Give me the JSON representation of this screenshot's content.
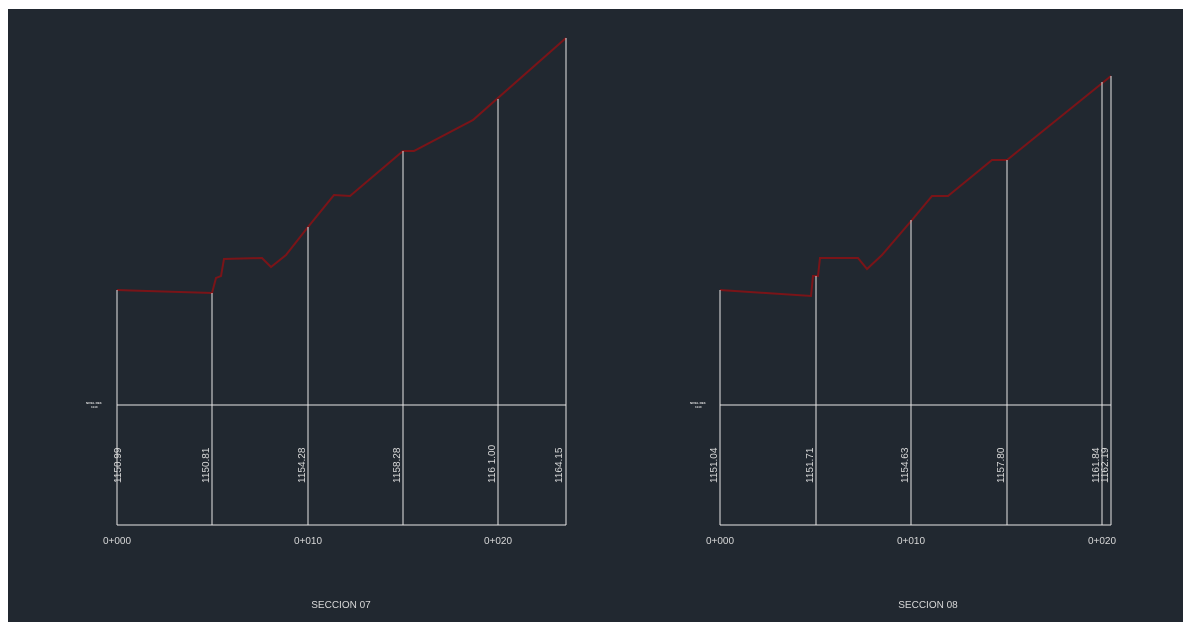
{
  "colors": {
    "background": "#212830",
    "lines": "#e6e6e6",
    "terrain": "#7a1418"
  },
  "sections": [
    {
      "title": "SECCION 07",
      "axis_small_label": [
        "NIVEL REF.",
        "1140"
      ],
      "chainage_labels": [
        "0+000",
        "0+010",
        "0+020"
      ],
      "ordinates": [
        {
          "distance": 0,
          "elevation": "1150.99"
        },
        {
          "distance": 5,
          "elevation": "1150.81"
        },
        {
          "distance": 10,
          "elevation": "1154.28"
        },
        {
          "distance": 15,
          "elevation": "1158.28"
        },
        {
          "distance": 20,
          "elevation": "116 1.00"
        },
        {
          "distance": 23.5,
          "elevation": "1164.15"
        }
      ]
    },
    {
      "title": "SECCION 08",
      "axis_small_label": [
        "NIVEL REF.",
        "1140"
      ],
      "chainage_labels": [
        "0+000",
        "0+010",
        "0+020"
      ],
      "ordinates": [
        {
          "distance": 0,
          "elevation": "1151.04"
        },
        {
          "distance": 5,
          "elevation": "1151.71"
        },
        {
          "distance": 10,
          "elevation": "1154.63"
        },
        {
          "distance": 15,
          "elevation": "1157.80"
        },
        {
          "distance": 20,
          "elevation": "1161.84"
        },
        {
          "distance": 20.5,
          "elevation": "1162.19"
        }
      ]
    }
  ]
}
